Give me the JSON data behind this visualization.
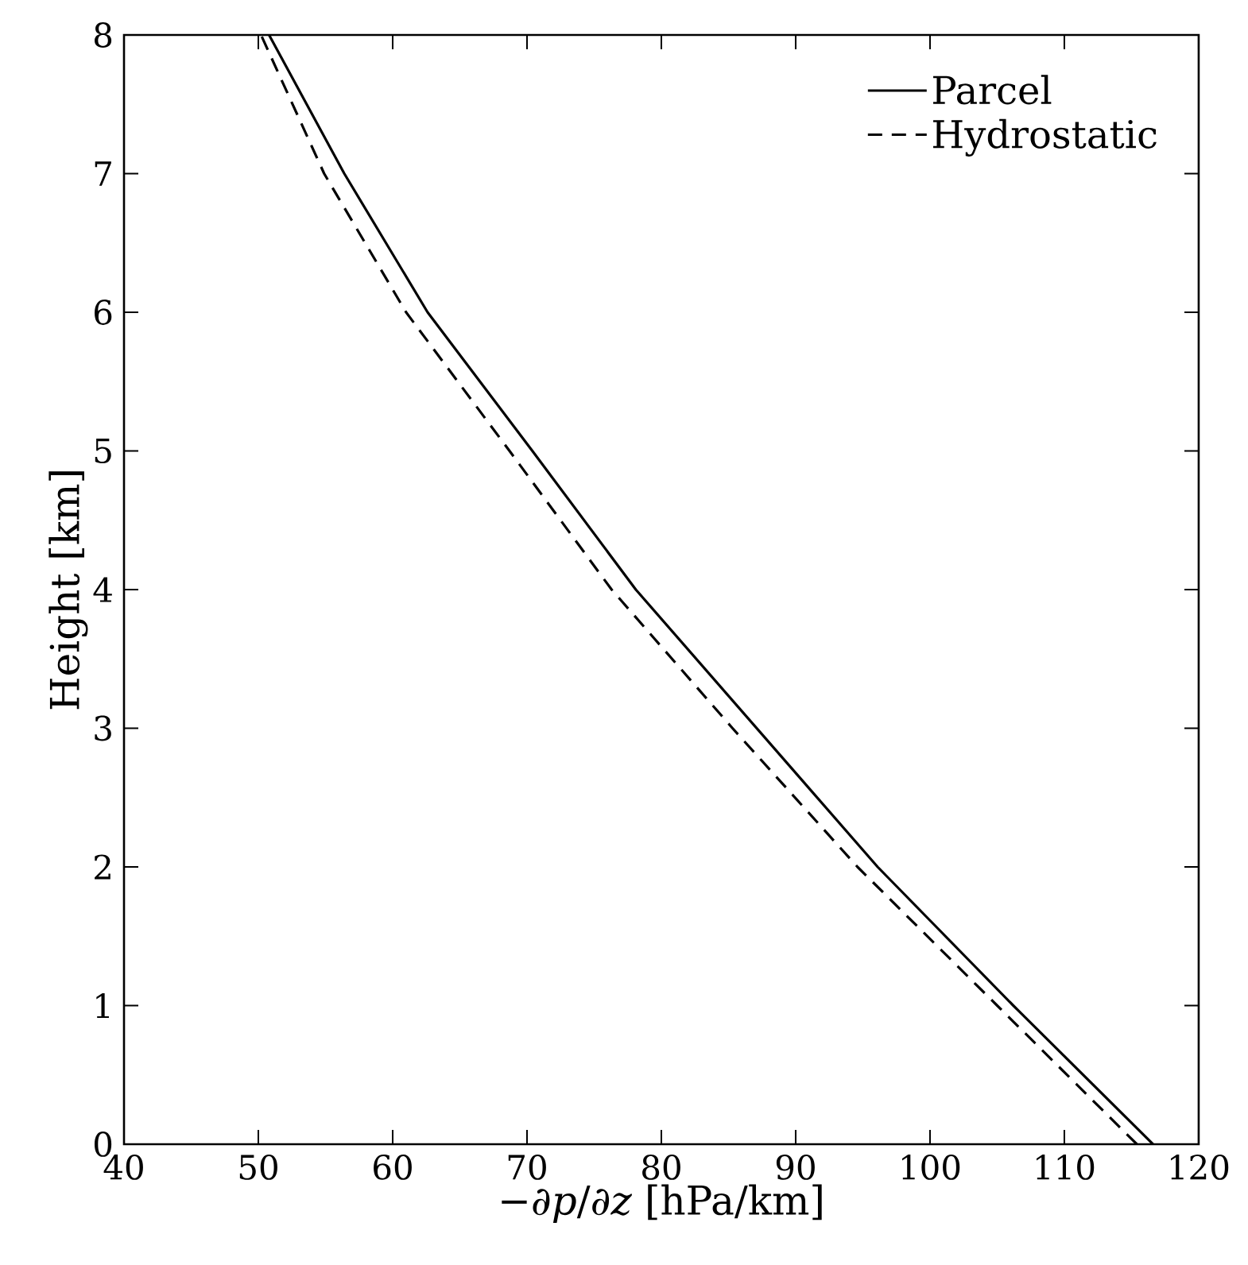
{
  "chart_data": {
    "type": "line",
    "xlabel": "−∂*p*/∂*z* [hPa/km]",
    "ylabel": "Height [km]",
    "xlim": [
      40,
      120
    ],
    "xticks": [
      40,
      50,
      60,
      70,
      80,
      90,
      100,
      110,
      120
    ],
    "ylim": [
      0,
      8
    ],
    "yticks": [
      0,
      1,
      2,
      3,
      4,
      5,
      6,
      7,
      8
    ],
    "grid": false,
    "legend": "top right",
    "series": [
      {
        "name": "Parcel",
        "color": "#000000",
        "line_style": "solid",
        "x": [
          116.6,
          106.2,
          96.1,
          87.1,
          78.1,
          70.4,
          62.6,
          56.4,
          50.8
        ],
        "values": [
          0,
          1,
          2,
          3,
          4,
          5,
          6,
          7,
          8
        ]
      },
      {
        "name": "Hydrostatic",
        "color": "#000000",
        "line_style": "dashed",
        "x": [
          115.4,
          105.0,
          94.6,
          85.3,
          76.3,
          68.7,
          61.0,
          54.9,
          50.2
        ],
        "values": [
          0,
          1,
          2,
          3,
          4,
          5,
          6,
          7,
          8
        ]
      }
    ]
  }
}
